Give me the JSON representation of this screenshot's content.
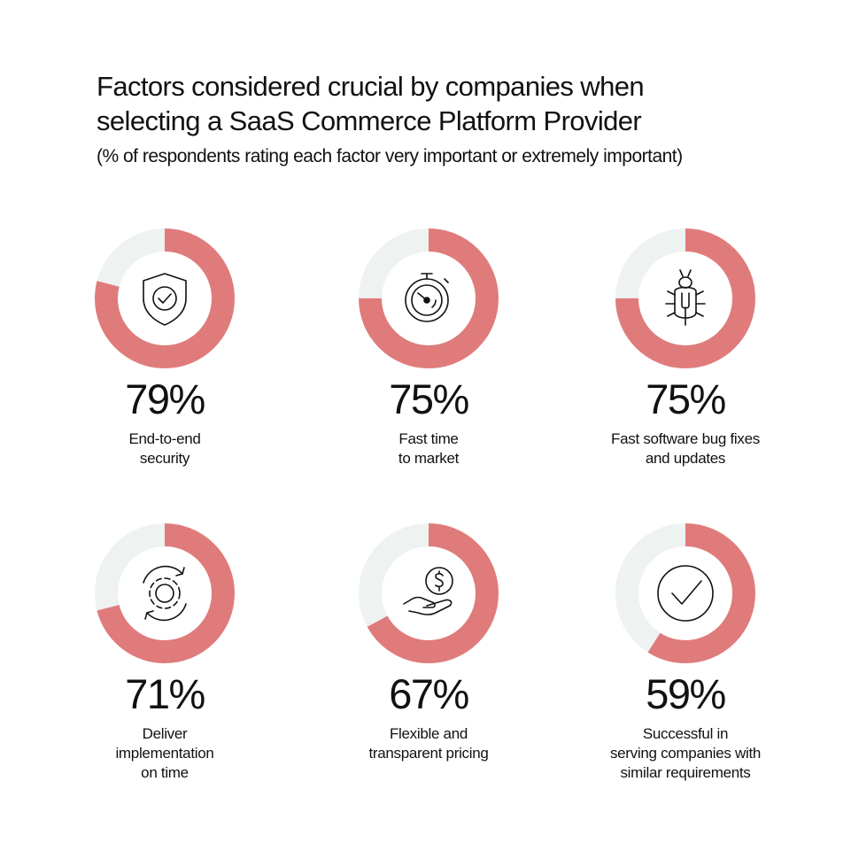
{
  "title_line1": "Factors considered crucial by companies when",
  "title_line2": "selecting a SaaS Commerce Platform Provider",
  "subtitle": "(% of respondents rating each factor very important or extremely important)",
  "colors": {
    "fill": "#e07b7b",
    "track": "#eef2f1",
    "icon": "#111111"
  },
  "chart_data": {
    "type": "pie",
    "title": "Factors considered crucial by companies when selecting a SaaS Commerce Platform Provider",
    "subtitle": "(% of respondents rating each factor very important or extremely important)",
    "categories": [
      "End-to-end security",
      "Fast time to market",
      "Fast software bug fixes and updates",
      "Deliver implementation on time",
      "Flexible and transparent pricing",
      "Successful in serving companies with similar requirements"
    ],
    "values": [
      79,
      75,
      75,
      71,
      67,
      59
    ],
    "items": [
      {
        "value": 79,
        "pct_label": "79%",
        "label": "End-to-end\nsecurity",
        "icon": "shield-check-icon"
      },
      {
        "value": 75,
        "pct_label": "75%",
        "label": "Fast time\nto market",
        "icon": "stopwatch-icon"
      },
      {
        "value": 75,
        "pct_label": "75%",
        "label": "Fast software bug fixes\nand updates",
        "icon": "bug-wrench-icon"
      },
      {
        "value": 71,
        "pct_label": "71%",
        "label": "Deliver\nimplementation\non time",
        "icon": "gear-cycle-icon"
      },
      {
        "value": 67,
        "pct_label": "67%",
        "label": "Flexible and\ntransparent pricing",
        "icon": "hand-dollar-icon"
      },
      {
        "value": 59,
        "pct_label": "59%",
        "label": "Successful in\nserving companies with\nsimilar requirements",
        "icon": "checkmark-circle-icon"
      }
    ]
  }
}
